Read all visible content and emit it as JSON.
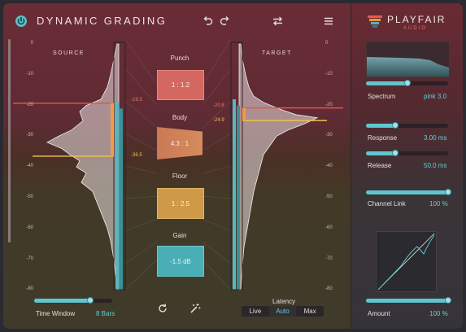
{
  "header": {
    "title": "DYNAMIC GRADING",
    "logo_name": "PLAYFAIR",
    "logo_sub": "AUDIO",
    "icons": [
      "power-icon",
      "undo-icon",
      "redo-icon",
      "swap-icon",
      "menu-icon"
    ]
  },
  "meters": {
    "source_label": "SOURCE",
    "target_label": "TARGET",
    "left_scale": [
      "0",
      "-10",
      "-20",
      "-30",
      "-40",
      "-50",
      "-60",
      "-70",
      "-80"
    ],
    "right_scale": [
      "0",
      "-10",
      "-20",
      "-30",
      "-40",
      "-50",
      "-60",
      "-70",
      "-80"
    ],
    "source_marker_top": "-19.3",
    "source_marker_bottom": "-36.5",
    "target_marker_top": "-20.8",
    "target_marker_bottom": "-24.9"
  },
  "controls": {
    "punch": {
      "label": "Punch",
      "value": "1 : 1.2"
    },
    "body": {
      "label": "Body",
      "value": "4.3 : 1"
    },
    "floor": {
      "label": "Floor",
      "value": "1 : 2.5"
    },
    "gain": {
      "label": "Gain",
      "value": "-1.5 dB"
    }
  },
  "bottom": {
    "time_window_label": "Time Window",
    "time_window_value": "8 Bars",
    "time_window_level": 0.72,
    "latency_label": "Latency",
    "latency_options": [
      "Live",
      "Auto",
      "Max"
    ],
    "latency_selected": "Auto"
  },
  "side": {
    "spectrum": {
      "label": "Spectrum",
      "value": "pink 3.0",
      "level": 0.5
    },
    "response": {
      "label": "Response",
      "value": "3.00 ms",
      "level": 0.36
    },
    "release": {
      "label": "Release",
      "value": "50.0 ms",
      "level": 0.36
    },
    "channel_link": {
      "label": "Channel Link",
      "value": "100 %",
      "level": 1.0
    },
    "amount": {
      "label": "Amount",
      "value": "100 %",
      "level": 1.0
    }
  },
  "colors": {
    "accent": "#5fc6cf",
    "punch_box": "#d86a66",
    "body_box": "#d9895a",
    "floor_box": "#d9a24a",
    "gain_box": "#4fb7c0",
    "marker_red": "#e2564c",
    "marker_orange": "#f29a4a",
    "marker_yellow": "#f2c24a"
  }
}
